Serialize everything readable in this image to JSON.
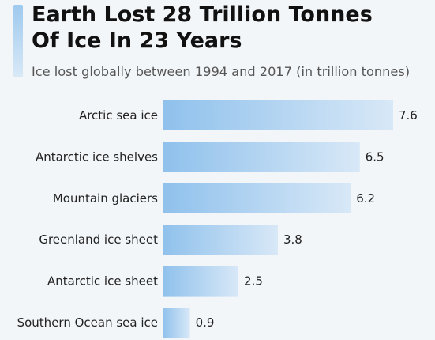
{
  "header": {
    "title_line1": "Earth Lost 28 Trillion Tonnes",
    "title_line2": "Of Ice In 23 Years",
    "subtitle": "Ice lost globally between 1994 and 2017 (in trillion tonnes)"
  },
  "colors": {
    "bar_start": "#8fc1ec",
    "bar_end": "#d8e8f7",
    "accent": "#9ec9ee"
  },
  "chart_data": {
    "type": "bar",
    "orientation": "horizontal",
    "categories": [
      "Arctic sea ice",
      "Antarctic ice shelves",
      "Mountain glaciers",
      "Greenland ice sheet",
      "Antarctic ice sheet",
      "Southern Ocean sea ice"
    ],
    "values": [
      7.6,
      6.5,
      6.2,
      3.8,
      2.5,
      0.9
    ],
    "value_labels": [
      "7.6",
      "6.5",
      "6.2",
      "3.8",
      "2.5",
      "0.9"
    ],
    "xlim": [
      0,
      7.6
    ],
    "grid": false,
    "legend": "none"
  }
}
